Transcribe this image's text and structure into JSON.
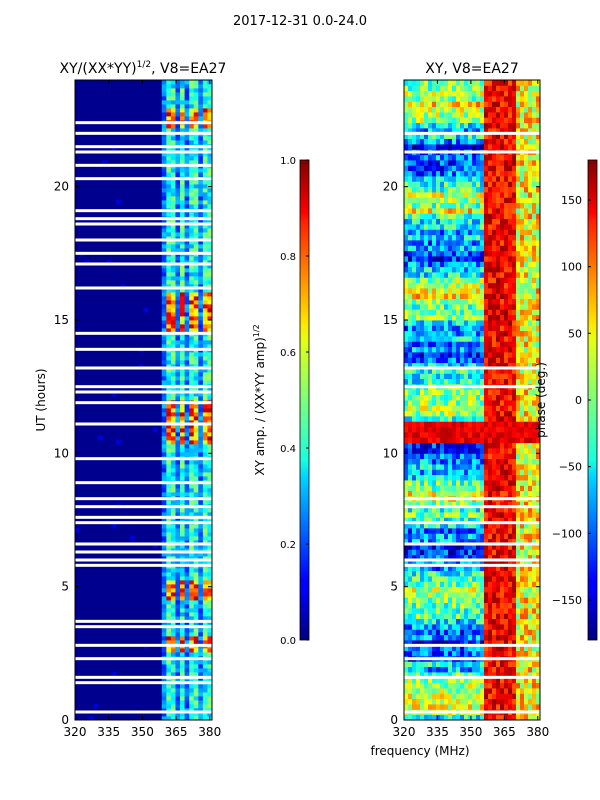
{
  "figure": {
    "suptitle": "2017-12-31 0.0-24.0",
    "shared_xlabel": "frequency (MHz)"
  },
  "chart_data": [
    {
      "type": "heatmap",
      "title": "XY/(XX*YY)",
      "title_sup": "1/2",
      "title_suffix": ", V8=EA27",
      "xlabel": "",
      "ylabel": "UT (hours)",
      "xlim": [
        320,
        381
      ],
      "ylim": [
        0,
        24
      ],
      "xticks": [
        320,
        335,
        350,
        365,
        380
      ],
      "yticks": [
        0,
        5,
        10,
        15,
        20
      ],
      "colorbar": {
        "label": "XY amp. / (XX*YY amp)",
        "label_sup": "1/2",
        "range": [
          0.0,
          1.0
        ],
        "ticks": [
          "0.0",
          "0.2",
          "0.4",
          "0.6",
          "0.8",
          "1.0"
        ],
        "colormap": "jet"
      },
      "strong_channels_mhz": [
        [
          360,
          364
        ],
        [
          366,
          369
        ],
        [
          371,
          374
        ],
        [
          376,
          380
        ]
      ],
      "flagged_gaps_hours": [
        0.3,
        1.4,
        1.6,
        2.3,
        2.8,
        3.5,
        3.7,
        5.8,
        6.0,
        6.3,
        6.6,
        7.4,
        7.6,
        8.0,
        8.3,
        8.9,
        9.8,
        11.1,
        11.9,
        12.3,
        12.5,
        13.2,
        13.9,
        14.5,
        16.2,
        17.1,
        17.5,
        18.0,
        18.6,
        18.8,
        19.1,
        20.3,
        20.8,
        21.3,
        21.5,
        22.0,
        22.4
      ],
      "high_amplitude_hours": [
        [
          22.2,
          23.0
        ],
        [
          14.6,
          16.1
        ],
        [
          10.4,
          12.0
        ],
        [
          4.5,
          5.3
        ],
        [
          2.5,
          3.1
        ]
      ]
    },
    {
      "type": "heatmap",
      "title": "XY, V8=EA27",
      "xlabel": "frequency (MHz)",
      "ylabel": "",
      "xlim": [
        320,
        381
      ],
      "ylim": [
        0,
        24
      ],
      "xticks": [
        320,
        335,
        350,
        365,
        380
      ],
      "yticks": [
        0,
        5,
        10,
        15,
        20
      ],
      "colorbar": {
        "label": "phase (deg.)",
        "range": [
          -180,
          180
        ],
        "ticks": [
          "−150",
          "−100",
          "−50",
          "0",
          "50",
          "100",
          "150"
        ],
        "tick_values": [
          -150,
          -100,
          -50,
          0,
          50,
          100,
          150
        ],
        "colormap": "jet"
      },
      "flagged_gaps_hours": [
        0.3,
        1.6,
        2.3,
        2.8,
        5.8,
        6.0,
        6.6,
        7.4,
        8.0,
        8.3,
        12.5,
        13.2,
        21.3,
        22.0
      ],
      "red_phase_band_mhz": [
        355,
        370
      ]
    }
  ]
}
